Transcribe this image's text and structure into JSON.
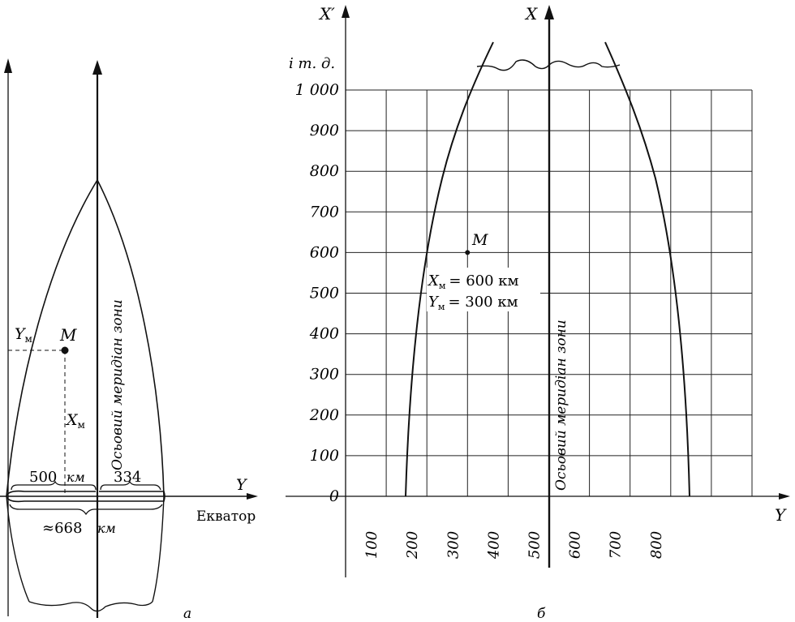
{
  "diagram_a": {
    "point_label": "M",
    "ym_label": "Y",
    "xm_label": "X",
    "subscript": "м",
    "axis_y_label": "Y",
    "equator_label": "Екватор",
    "meridian_label": "Осьовий меридіан зони",
    "width_left_value": "500",
    "width_left_unit": "км",
    "width_right_value": "334",
    "total_width_label": "≈668",
    "total_width_unit": "км",
    "caption": "а"
  },
  "diagram_b": {
    "axis_xprime_label": "X′",
    "axis_x_label": "X",
    "axis_y_label": "Y",
    "etc_label": "і т. д.",
    "y_ticks": [
      "0",
      "100",
      "200",
      "300",
      "400",
      "500",
      "600",
      "700",
      "800",
      "900",
      "1 000"
    ],
    "x_ticks": [
      "100",
      "200",
      "300",
      "400",
      "500",
      "600",
      "700",
      "800"
    ],
    "point_label": "M",
    "point": {
      "x": 300,
      "y": 600
    },
    "xm_text": "= 600 км",
    "ym_text": "= 300 км",
    "coord_x_label": "X",
    "coord_y_label": "Y",
    "subscript": "м",
    "meridian_label": "Осьовий меридіан зони",
    "caption": "б"
  }
}
